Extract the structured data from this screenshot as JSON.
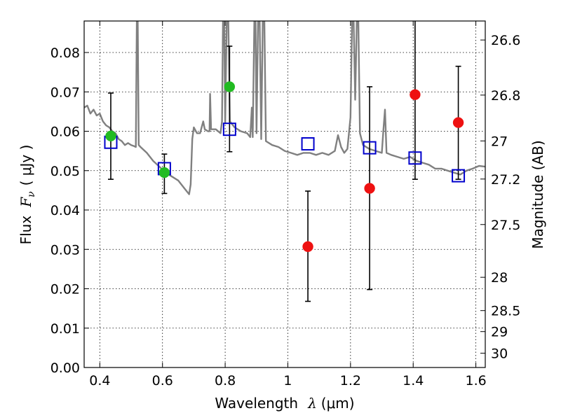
{
  "chart_data": {
    "type": "scatter",
    "title": "",
    "xlabel_text": "Wavelength",
    "xlabel_symbol": "λ",
    "xlabel_unit": "(μm)",
    "ylabel_text": "Flux",
    "ylabel_symbol": "F",
    "ylabel_subscript": "ν",
    "ylabel_unit": "( μJy )",
    "y2label": "Magnitude (AB)",
    "xlim": [
      0.35,
      1.63
    ],
    "ylim": [
      0.0,
      0.088
    ],
    "grid": true,
    "x_ticks": [
      0.4,
      0.6,
      0.8,
      1.0,
      1.2,
      1.4,
      1.6
    ],
    "x_tick_labels": [
      "0.4",
      "0.6",
      "0.8",
      "1",
      "1.2",
      "1.4",
      "1.6"
    ],
    "y_ticks": [
      0.0,
      0.01,
      0.02,
      0.03,
      0.04,
      0.05,
      0.06,
      0.07,
      0.08
    ],
    "y_tick_labels": [
      "0.00",
      "0.01",
      "0.02",
      "0.03",
      "0.04",
      "0.05",
      "0.06",
      "0.07",
      "0.08"
    ],
    "y2_ticks": [
      {
        "label": "26.6",
        "mag": 26.6
      },
      {
        "label": "26.8",
        "mag": 26.8
      },
      {
        "label": "27",
        "mag": 27.0
      },
      {
        "label": "27.2",
        "mag": 27.2
      },
      {
        "label": "27.5",
        "mag": 27.5
      },
      {
        "label": "28",
        "mag": 28.0
      },
      {
        "label": "28.5",
        "mag": 28.5
      },
      {
        "label": "29",
        "mag": 29.0
      },
      {
        "label": "30",
        "mag": 30.0
      }
    ],
    "series": [
      {
        "type": "line",
        "color": "#808080",
        "points": [
          [
            0.35,
            0.066
          ],
          [
            0.36,
            0.0665
          ],
          [
            0.37,
            0.0645
          ],
          [
            0.38,
            0.0655
          ],
          [
            0.39,
            0.064
          ],
          [
            0.4,
            0.0645
          ],
          [
            0.41,
            0.0625
          ],
          [
            0.42,
            0.0615
          ],
          [
            0.43,
            0.061
          ],
          [
            0.44,
            0.06
          ],
          [
            0.45,
            0.0595
          ],
          [
            0.46,
            0.058
          ],
          [
            0.47,
            0.0575
          ],
          [
            0.48,
            0.0565
          ],
          [
            0.49,
            0.057
          ],
          [
            0.5,
            0.0565
          ],
          [
            0.51,
            0.0562
          ],
          [
            0.515,
            0.056
          ],
          [
            0.518,
            0.088
          ],
          [
            0.521,
            0.088
          ],
          [
            0.524,
            0.0565
          ],
          [
            0.53,
            0.056
          ],
          [
            0.55,
            0.0545
          ],
          [
            0.57,
            0.0525
          ],
          [
            0.59,
            0.051
          ],
          [
            0.61,
            0.0495
          ],
          [
            0.63,
            0.0485
          ],
          [
            0.65,
            0.0475
          ],
          [
            0.66,
            0.0465
          ],
          [
            0.67,
            0.0455
          ],
          [
            0.68,
            0.0445
          ],
          [
            0.685,
            0.044
          ],
          [
            0.69,
            0.0465
          ],
          [
            0.695,
            0.058
          ],
          [
            0.7,
            0.061
          ],
          [
            0.71,
            0.0595
          ],
          [
            0.72,
            0.0595
          ],
          [
            0.73,
            0.0625
          ],
          [
            0.735,
            0.0605
          ],
          [
            0.745,
            0.06
          ],
          [
            0.75,
            0.06
          ],
          [
            0.752,
            0.0695
          ],
          [
            0.755,
            0.0605
          ],
          [
            0.77,
            0.0605
          ],
          [
            0.785,
            0.0595
          ],
          [
            0.79,
            0.0625
          ],
          [
            0.793,
            0.088
          ],
          [
            0.797,
            0.088
          ],
          [
            0.8,
            0.062
          ],
          [
            0.805,
            0.088
          ],
          [
            0.81,
            0.088
          ],
          [
            0.815,
            0.0625
          ],
          [
            0.83,
            0.061
          ],
          [
            0.85,
            0.06
          ],
          [
            0.87,
            0.0595
          ],
          [
            0.88,
            0.0585
          ],
          [
            0.885,
            0.066
          ],
          [
            0.888,
            0.0585
          ],
          [
            0.893,
            0.088
          ],
          [
            0.897,
            0.088
          ],
          [
            0.9,
            0.0595
          ],
          [
            0.905,
            0.088
          ],
          [
            0.91,
            0.088
          ],
          [
            0.915,
            0.058
          ],
          [
            0.92,
            0.088
          ],
          [
            0.925,
            0.088
          ],
          [
            0.93,
            0.0575
          ],
          [
            0.95,
            0.0565
          ],
          [
            0.97,
            0.056
          ],
          [
            0.99,
            0.055
          ],
          [
            1.01,
            0.0545
          ],
          [
            1.03,
            0.054
          ],
          [
            1.05,
            0.0545
          ],
          [
            1.07,
            0.0545
          ],
          [
            1.09,
            0.054
          ],
          [
            1.11,
            0.0545
          ],
          [
            1.13,
            0.054
          ],
          [
            1.15,
            0.055
          ],
          [
            1.16,
            0.059
          ],
          [
            1.17,
            0.056
          ],
          [
            1.18,
            0.0545
          ],
          [
            1.19,
            0.0555
          ],
          [
            1.2,
            0.0635
          ],
          [
            1.205,
            0.088
          ],
          [
            1.21,
            0.088
          ],
          [
            1.215,
            0.068
          ],
          [
            1.22,
            0.088
          ],
          [
            1.225,
            0.088
          ],
          [
            1.23,
            0.0595
          ],
          [
            1.24,
            0.0565
          ],
          [
            1.26,
            0.0555
          ],
          [
            1.28,
            0.055
          ],
          [
            1.3,
            0.0545
          ],
          [
            1.305,
            0.0605
          ],
          [
            1.31,
            0.0655
          ],
          [
            1.315,
            0.0545
          ],
          [
            1.33,
            0.054
          ],
          [
            1.35,
            0.0535
          ],
          [
            1.37,
            0.053
          ],
          [
            1.39,
            0.0535
          ],
          [
            1.41,
            0.0525
          ],
          [
            1.43,
            0.052
          ],
          [
            1.45,
            0.0515
          ],
          [
            1.47,
            0.0505
          ],
          [
            1.49,
            0.0505
          ],
          [
            1.51,
            0.05
          ],
          [
            1.53,
            0.0495
          ],
          [
            1.55,
            0.049
          ],
          [
            1.57,
            0.05
          ],
          [
            1.59,
            0.0505
          ],
          [
            1.61,
            0.0512
          ],
          [
            1.63,
            0.051
          ]
        ]
      },
      {
        "type": "errorbar",
        "color": "#000000",
        "bars": [
          {
            "x": 0.435,
            "low": 0.0478,
            "high": 0.0697
          },
          {
            "x": 0.606,
            "low": 0.0442,
            "high": 0.0542
          },
          {
            "x": 0.814,
            "low": 0.0548,
            "high": 0.0816
          },
          {
            "x": 1.064,
            "low": 0.0168,
            "high": 0.0448
          },
          {
            "x": 1.261,
            "low": 0.0198,
            "high": 0.0713
          },
          {
            "x": 1.406,
            "low": 0.0478,
            "high": 0.088
          },
          {
            "x": 1.544,
            "low": 0.0478,
            "high": 0.0765
          }
        ]
      },
      {
        "type": "scatter",
        "marker": "square",
        "color": "#0000cc",
        "points": [
          [
            0.435,
            0.0572
          ],
          [
            0.606,
            0.0505
          ],
          [
            0.814,
            0.0605
          ],
          [
            1.064,
            0.0568
          ],
          [
            1.261,
            0.0558
          ],
          [
            1.406,
            0.0532
          ],
          [
            1.544,
            0.0487
          ]
        ]
      },
      {
        "type": "scatter",
        "marker": "circle",
        "color": "#22bb22",
        "points": [
          [
            0.435,
            0.0588
          ],
          [
            0.606,
            0.0495
          ],
          [
            0.814,
            0.0713
          ]
        ]
      },
      {
        "type": "scatter",
        "marker": "circle",
        "color": "#ee1111",
        "points": [
          [
            1.064,
            0.0307
          ],
          [
            1.261,
            0.0455
          ],
          [
            1.406,
            0.0693
          ],
          [
            1.544,
            0.0622
          ]
        ]
      }
    ]
  }
}
